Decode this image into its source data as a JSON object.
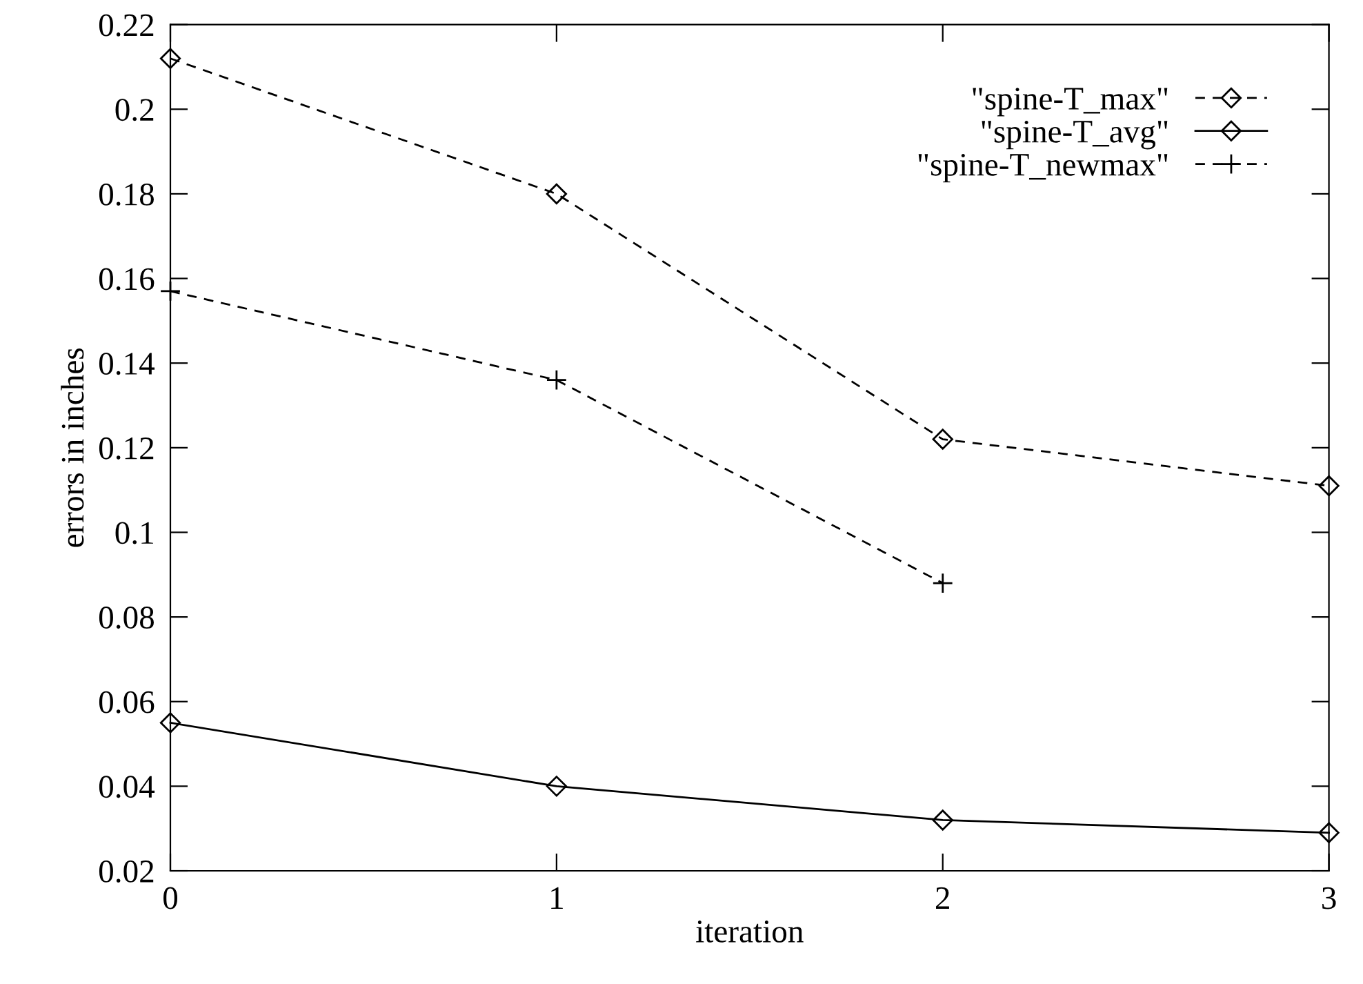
{
  "chart_data": {
    "type": "line",
    "xlabel": "iteration",
    "ylabel": "errors in inches",
    "x": [
      0,
      1,
      2,
      3
    ],
    "xlim": [
      0,
      3
    ],
    "xticks": [
      0,
      1,
      2,
      3
    ],
    "ylim": [
      0.02,
      0.22
    ],
    "yticks": [
      0.02,
      0.04,
      0.06,
      0.08,
      0.1,
      0.12,
      0.14,
      0.16,
      0.18,
      0.2,
      0.22
    ],
    "grid": false,
    "legend": "top right",
    "series": [
      {
        "name": "\"spine-T_max\"",
        "color": "#000000",
        "marker": "diamond",
        "line_style": "dashed",
        "values": [
          0.212,
          0.18,
          0.122,
          0.111
        ]
      },
      {
        "name": "\"spine-T_avg\"",
        "color": "#000000",
        "marker": "diamond",
        "line_style": "solid",
        "values": [
          0.055,
          0.04,
          0.032,
          0.029
        ]
      },
      {
        "name": "\"spine-T_newmax\"",
        "color": "#000000",
        "marker": "cross",
        "line_style": "dashed",
        "x": [
          0,
          1,
          2
        ],
        "values": [
          0.157,
          0.136,
          0.088
        ]
      }
    ]
  }
}
